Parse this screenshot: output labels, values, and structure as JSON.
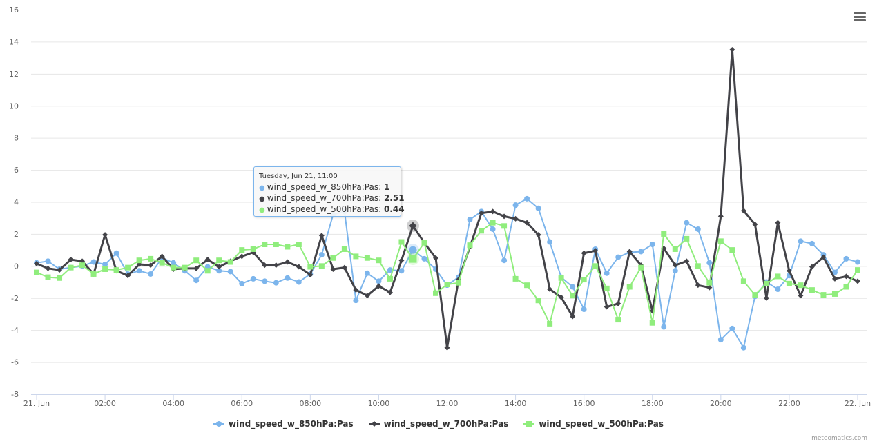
{
  "chart_data": {
    "type": "line",
    "title": "",
    "xlabel": "",
    "ylabel": "",
    "ylim": [
      -8,
      16
    ],
    "yticks": [
      -8,
      -6,
      -4,
      -2,
      0,
      2,
      4,
      6,
      8,
      10,
      12,
      14,
      16
    ],
    "xticks": [
      {
        "x": "00:00",
        "label": "21. Jun"
      },
      {
        "x": "02:00",
        "label": "02:00"
      },
      {
        "x": "04:00",
        "label": "04:00"
      },
      {
        "x": "06:00",
        "label": "06:00"
      },
      {
        "x": "08:00",
        "label": "08:00"
      },
      {
        "x": "10:00",
        "label": "10:00"
      },
      {
        "x": "12:00",
        "label": "12:00"
      },
      {
        "x": "14:00",
        "label": "14:00"
      },
      {
        "x": "16:00",
        "label": "16:00"
      },
      {
        "x": "18:00",
        "label": "18:00"
      },
      {
        "x": "20:00",
        "label": "20:00"
      },
      {
        "x": "22:00",
        "label": "22:00"
      },
      {
        "x": "24:00",
        "label": "22. Jun"
      }
    ],
    "grid": true,
    "legend_placement": "bottom-center",
    "x": [
      "00:00",
      "00:20",
      "00:40",
      "01:00",
      "01:20",
      "01:40",
      "02:00",
      "02:20",
      "02:40",
      "03:00",
      "03:20",
      "03:40",
      "04:00",
      "04:20",
      "04:40",
      "05:00",
      "05:20",
      "05:40",
      "06:00",
      "06:20",
      "06:40",
      "07:00",
      "07:20",
      "07:40",
      "08:00",
      "08:20",
      "08:40",
      "09:00",
      "09:20",
      "09:40",
      "10:00",
      "10:20",
      "10:40",
      "11:00",
      "11:20",
      "11:40",
      "12:00",
      "12:20",
      "12:40",
      "13:00",
      "13:20",
      "13:40",
      "14:00",
      "14:20",
      "14:40",
      "15:00",
      "15:20",
      "15:40",
      "16:00",
      "16:20",
      "16:40",
      "17:00",
      "17:20",
      "17:40",
      "18:00",
      "18:20",
      "18:40",
      "19:00",
      "19:20",
      "19:40",
      "20:00",
      "20:20",
      "20:40",
      "21:00",
      "21:20",
      "21:40",
      "22:00",
      "22:20",
      "22:40",
      "23:00",
      "23:20",
      "23:40",
      "24:00"
    ],
    "series": [
      {
        "name": "wind_speed_w_850hPa:Pas",
        "color": "#7cb5ec",
        "marker": "circle",
        "values": [
          0.2,
          0.3,
          -0.2,
          -0.1,
          0.0,
          0.25,
          0.1,
          0.8,
          -0.5,
          -0.3,
          -0.5,
          0.5,
          0.2,
          -0.3,
          -0.9,
          -0.05,
          -0.3,
          -0.35,
          -1.1,
          -0.8,
          -0.95,
          -1.05,
          -0.75,
          -1.0,
          -0.5,
          0.7,
          3.2,
          3.4,
          -2.15,
          -0.45,
          -0.95,
          -0.25,
          -0.3,
          1.0,
          0.45,
          -0.2,
          -1.2,
          -0.7,
          2.9,
          3.4,
          2.3,
          0.35,
          3.8,
          4.2,
          3.6,
          1.5,
          -0.7,
          -1.3,
          -2.7,
          1.05,
          -0.45,
          0.55,
          0.85,
          0.9,
          1.35,
          -3.8,
          -0.3,
          2.7,
          2.3,
          0.2,
          -4.6,
          -3.9,
          -5.1,
          -1.9,
          -1.0,
          -1.45,
          -0.6,
          1.55,
          1.4,
          0.7,
          -0.4,
          0.45,
          0.25
        ]
      },
      {
        "name": "wind_speed_w_700hPa:Pas",
        "color": "#434348",
        "marker": "diamond",
        "values": [
          0.15,
          -0.15,
          -0.25,
          0.4,
          0.3,
          -0.5,
          1.95,
          -0.3,
          -0.6,
          0.1,
          0.05,
          0.6,
          -0.2,
          -0.15,
          -0.15,
          0.4,
          -0.05,
          0.3,
          0.6,
          0.85,
          0.05,
          0.05,
          0.25,
          -0.05,
          -0.55,
          1.9,
          -0.2,
          -0.1,
          -1.5,
          -1.85,
          -1.25,
          -1.65,
          0.35,
          2.51,
          1.45,
          0.5,
          -5.1,
          -0.85,
          1.2,
          3.3,
          3.4,
          3.1,
          2.95,
          2.7,
          1.95,
          -1.45,
          -1.95,
          -3.15,
          0.8,
          0.95,
          -2.55,
          -2.35,
          0.9,
          0.05,
          -2.8,
          1.1,
          0.05,
          0.3,
          -1.2,
          -1.35,
          3.1,
          13.5,
          3.45,
          2.6,
          -2.0,
          2.7,
          -0.3,
          -1.85,
          -0.05,
          0.55,
          -0.8,
          -0.65,
          -0.95
        ]
      },
      {
        "name": "wind_speed_w_500hPa:Pas",
        "color": "#90ed7d",
        "marker": "square",
        "values": [
          -0.4,
          -0.7,
          -0.75,
          -0.1,
          0.05,
          -0.5,
          -0.2,
          -0.25,
          -0.1,
          0.35,
          0.45,
          0.2,
          -0.1,
          -0.1,
          0.35,
          -0.3,
          0.35,
          0.25,
          1.0,
          1.05,
          1.35,
          1.35,
          1.2,
          1.35,
          -0.05,
          0.0,
          0.5,
          1.05,
          0.6,
          0.5,
          0.35,
          -0.8,
          1.5,
          0.44,
          1.45,
          -1.7,
          -1.15,
          -1.05,
          1.3,
          2.2,
          2.7,
          2.5,
          -0.8,
          -1.2,
          -2.15,
          -3.6,
          -0.75,
          -1.85,
          -0.85,
          0.0,
          -1.4,
          -3.35,
          -1.3,
          -0.1,
          -3.55,
          2.0,
          1.05,
          1.7,
          0.0,
          -1.05,
          1.55,
          1.0,
          -0.95,
          -1.8,
          -1.1,
          -0.65,
          -1.1,
          -1.2,
          -1.5,
          -1.8,
          -1.75,
          -1.3,
          -0.25
        ]
      }
    ],
    "tooltip": {
      "x": "11:00",
      "header": "Tuesday, Jun 21, 11:00",
      "rows": [
        {
          "label": "wind_speed_w_850hPa:Pas: ",
          "value": "1"
        },
        {
          "label": "wind_speed_w_700hPa:Pas: ",
          "value": "2.51"
        },
        {
          "label": "wind_speed_w_500hPa:Pas: ",
          "value": "0.44"
        }
      ]
    }
  },
  "credits": "meteomatics.com",
  "menu_icon": "hamburger-menu-icon"
}
